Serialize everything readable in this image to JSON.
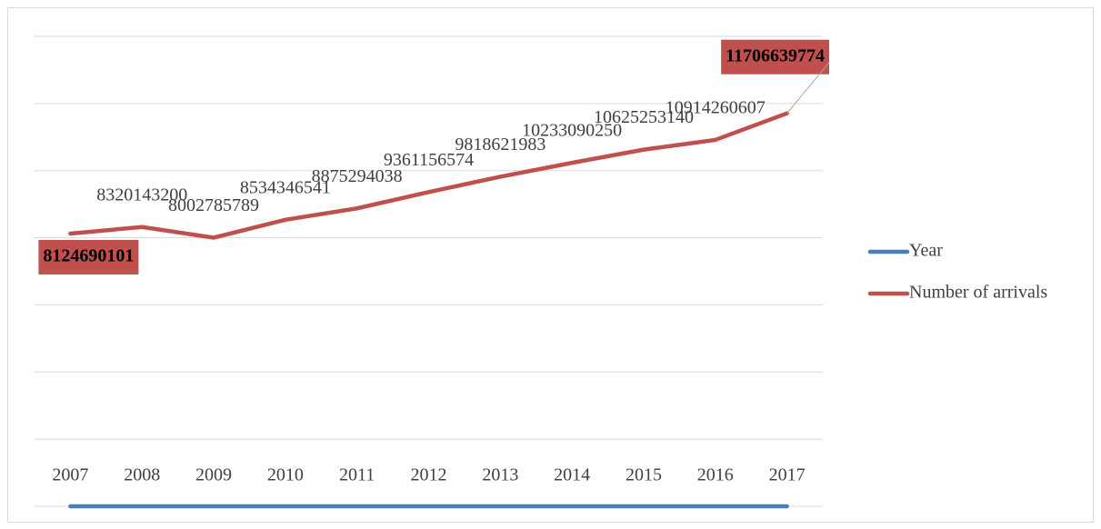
{
  "chart_data": {
    "type": "line",
    "categories": [
      "2007",
      "2008",
      "2009",
      "2010",
      "2011",
      "2012",
      "2013",
      "2014",
      "2015",
      "2016",
      "2017"
    ],
    "series": [
      {
        "name": "Year",
        "color": "#4a7ebb",
        "values": [
          2007,
          2008,
          2009,
          2010,
          2011,
          2012,
          2013,
          2014,
          2015,
          2016,
          2017
        ]
      },
      {
        "name": "Number of arrivals",
        "color": "#c0504d",
        "values": [
          8124690101,
          8320143200,
          8002785789,
          8534346541,
          8875294038,
          9361156574,
          9818621983,
          10233090250,
          10625253140,
          10914260607,
          11706639774
        ]
      }
    ],
    "data_labels_series": 1,
    "highlighted_points": [
      0,
      10
    ],
    "ylim": [
      0,
      14000000000
    ],
    "yticks": [
      0,
      2000000000,
      4000000000,
      6000000000,
      8000000000,
      10000000000,
      12000000000,
      14000000000
    ],
    "show_ytick_labels": false,
    "grid": true,
    "legend": "right"
  }
}
